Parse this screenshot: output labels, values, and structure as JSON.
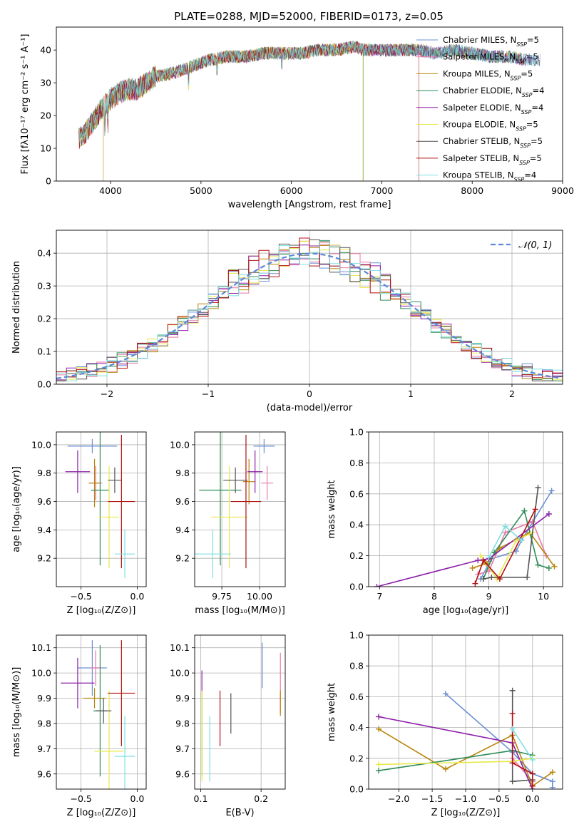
{
  "title": "PLATE=0288, MJD=52000, FIBERID=0173, z=0.05",
  "colors": [
    "#6b8fd6",
    "#e879a8",
    "#b8860b",
    "#2e8b57",
    "#8b1fa8",
    "#e8e84a",
    "#555555",
    "#b01010",
    "#7fdfe0"
  ],
  "chart_data": [
    {
      "id": "spectrum",
      "type": "line",
      "xlabel": "wavelength [Angstrom, rest frame]",
      "ylabel": "Flux [fλ10⁻¹⁷ erg cm⁻² s⁻¹ A⁻¹]",
      "xlim": [
        3400,
        9000
      ],
      "ylim": [
        0,
        47
      ],
      "xticks": [
        "4000",
        "5000",
        "6000",
        "7000",
        "8000",
        "9000"
      ],
      "yticks": [
        "0",
        "10",
        "20",
        "30",
        "40"
      ],
      "legend_position": "upper-right",
      "legend": [
        "Chabrier MILES, N_SSP=5",
        "Salpeter MILES, N_SSP=5",
        "Kroupa MILES, N_SSP=5",
        "Chabrier ELODIE, N_SSP=4",
        "Salpeter ELODIE, N_SSP=4",
        "Kroupa ELODIE, N_SSP=5",
        "Chabrier STELIB, N_SSP=5",
        "Salpeter STELIB, N_SSP=5",
        "Kroupa STELIB, N_SSP=4"
      ],
      "continuum": {
        "x": [
          3650,
          3700,
          3800,
          3900,
          4000,
          4100,
          4200,
          4300,
          4400,
          4500,
          4700,
          4900,
          5100,
          5300,
          5500,
          5700,
          5900,
          6100,
          6300,
          6500,
          6700,
          6800,
          6900,
          7000,
          7200,
          7400,
          7600,
          7800,
          8000,
          8200,
          8400,
          8600,
          8800
        ],
        "y": [
          13,
          14,
          18,
          22,
          25,
          27,
          28,
          28,
          30,
          32,
          33,
          35,
          37,
          38,
          38,
          39,
          39,
          39,
          40,
          40,
          41,
          40,
          40,
          40,
          40,
          40,
          39,
          40,
          39,
          38,
          38,
          37,
          37
        ]
      }
    },
    {
      "id": "residuals",
      "type": "step",
      "xlabel": "(data-model)/error",
      "ylabel": "Normed distribution",
      "xlim": [
        -2.5,
        2.5
      ],
      "ylim": [
        0,
        0.47
      ],
      "xticks": [
        "−2",
        "−1",
        "0",
        "1",
        "2"
      ],
      "yticks": [
        "0.0",
        "0.1",
        "0.2",
        "0.3",
        "0.4"
      ],
      "grid": true,
      "legend_position": "upper-right",
      "legend": [
        "𝒩(0, 1)"
      ],
      "gaussian": {
        "mu": 0,
        "sigma": 1
      }
    },
    {
      "id": "age-vs-Z",
      "type": "errorbar",
      "xlabel": "Z [log₁₀(Z/Z⊙)]",
      "ylabel": "age  [log₁₀(age/yr)]",
      "xlim": [
        -0.72,
        0.08
      ],
      "ylim": [
        9.0,
        10.09
      ],
      "xticks": [
        "−0.5",
        "0.0"
      ],
      "yticks": [
        "9.2",
        "9.4",
        "9.6",
        "9.8",
        "10.0"
      ],
      "grid": true,
      "points": [
        {
          "c": 0,
          "x": -0.4,
          "y": 9.99,
          "xe": 0.22,
          "ye": 0.05
        },
        {
          "c": 1,
          "x": -0.37,
          "y": 9.73,
          "xe": 0.06,
          "ye": 0.12
        },
        {
          "c": 2,
          "x": -0.38,
          "y": 9.73,
          "xe": 0.05,
          "ye": 0.17
        },
        {
          "c": 3,
          "x": -0.33,
          "y": 9.68,
          "xe": 0.08,
          "ye": 0.53
        },
        {
          "c": 4,
          "x": -0.53,
          "y": 9.81,
          "xe": 0.11,
          "ye": 0.15
        },
        {
          "c": 5,
          "x": -0.25,
          "y": 9.49,
          "xe": 0.09,
          "ye": 0.36
        },
        {
          "c": 6,
          "x": -0.2,
          "y": 9.75,
          "xe": 0.06,
          "ye": 0.09
        },
        {
          "c": 7,
          "x": -0.14,
          "y": 9.6,
          "xe": 0.12,
          "ye": 0.47
        },
        {
          "c": 8,
          "x": -0.11,
          "y": 9.23,
          "xe": 0.09,
          "ye": 0.17
        }
      ]
    },
    {
      "id": "age-vs-mass",
      "type": "errorbar",
      "xlabel": "mass [log₁₀(M/M⊙)]",
      "ylabel": "",
      "xlim": [
        9.57,
        10.17
      ],
      "ylim": [
        9.0,
        10.09
      ],
      "xticks": [
        "9.75",
        "10.00"
      ],
      "yticks": [
        "9.2",
        "9.4",
        "9.6",
        "9.8",
        "10.0"
      ],
      "grid": true,
      "points": [
        {
          "c": 0,
          "x": 10.03,
          "y": 9.99,
          "xe": 0.07,
          "ye": 0.05
        },
        {
          "c": 1,
          "x": 10.05,
          "y": 9.73,
          "xe": 0.04,
          "ye": 0.12
        },
        {
          "c": 2,
          "x": 9.93,
          "y": 9.74,
          "xe": 0.04,
          "ye": 0.16
        },
        {
          "c": 3,
          "x": 9.74,
          "y": 9.68,
          "xe": 0.14,
          "ye": 0.53
        },
        {
          "c": 4,
          "x": 9.97,
          "y": 9.81,
          "xe": 0.05,
          "ye": 0.15
        },
        {
          "c": 5,
          "x": 9.8,
          "y": 9.49,
          "xe": 0.12,
          "ye": 0.36
        },
        {
          "c": 6,
          "x": 9.84,
          "y": 9.75,
          "xe": 0.08,
          "ye": 0.09
        },
        {
          "c": 7,
          "x": 9.91,
          "y": 9.6,
          "xe": 0.1,
          "ye": 0.47
        },
        {
          "c": 8,
          "x": 9.69,
          "y": 9.23,
          "xe": 0.12,
          "ye": 0.17
        }
      ]
    },
    {
      "id": "weight-vs-age",
      "type": "line",
      "xlabel": "age  [log₁₀(age/yr)]",
      "ylabel": "mass weight",
      "xlim": [
        6.8,
        10.35
      ],
      "ylim": [
        0,
        1.0
      ],
      "xticks": [
        "7",
        "8",
        "9",
        "10"
      ],
      "yticks": [
        "0.0",
        "0.2",
        "0.4",
        "0.6",
        "0.8",
        "1.0"
      ],
      "grid": true,
      "series": [
        {
          "c": 0,
          "x": [
            8.85,
            9.05,
            9.5,
            9.6,
            10.15
          ],
          "y": [
            0.05,
            0.18,
            0.23,
            0.3,
            0.62
          ]
        },
        {
          "c": 1,
          "x": [
            8.8,
            9.0,
            9.3,
            9.8,
            10.05
          ],
          "y": [
            0.08,
            0.1,
            0.35,
            0.42,
            0.2
          ]
        },
        {
          "c": 2,
          "x": [
            8.7,
            8.95,
            9.2,
            9.75,
            10.2
          ],
          "y": [
            0.12,
            0.15,
            0.25,
            0.35,
            0.13
          ]
        },
        {
          "c": 3,
          "x": [
            8.9,
            9.1,
            9.65,
            9.9,
            10.1
          ],
          "y": [
            0.05,
            0.22,
            0.49,
            0.14,
            0.12
          ]
        },
        {
          "c": 4,
          "x": [
            6.95,
            8.8,
            9.0,
            10.1
          ],
          "y": [
            0.0,
            0.17,
            0.18,
            0.47
          ]
        },
        {
          "c": 5,
          "x": [
            8.85,
            9.15,
            9.5,
            9.8
          ],
          "y": [
            0.2,
            0.05,
            0.3,
            0.35
          ]
        },
        {
          "c": 6,
          "x": [
            8.9,
            9.05,
            9.7,
            9.9
          ],
          "y": [
            0.05,
            0.06,
            0.06,
            0.64
          ]
        },
        {
          "c": 7,
          "x": [
            8.75,
            8.9,
            9.2,
            9.85
          ],
          "y": [
            0.02,
            0.17,
            0.05,
            0.5
          ]
        },
        {
          "c": 8,
          "x": [
            9.0,
            9.3,
            9.6
          ],
          "y": [
            0.19,
            0.39,
            0.3
          ]
        }
      ]
    },
    {
      "id": "mass-vs-Z",
      "type": "errorbar",
      "xlabel": "Z [log₁₀(Z/Z⊙)]",
      "ylabel": "mass [log₁₀(M/M⊙)]",
      "xlim": [
        -0.72,
        0.08
      ],
      "ylim": [
        9.54,
        10.15
      ],
      "xticks": [
        "−0.5",
        "0.0"
      ],
      "yticks": [
        "9.6",
        "9.7",
        "9.8",
        "9.9",
        "10.0",
        "10.1"
      ],
      "grid": true,
      "points": [
        {
          "c": 0,
          "x": -0.4,
          "y": 10.02,
          "xe": 0.13,
          "ye": 0.11
        },
        {
          "c": 1,
          "x": -0.37,
          "y": 10.02,
          "xe": 0.05,
          "ye": 0.07
        },
        {
          "c": 2,
          "x": -0.38,
          "y": 9.9,
          "xe": 0.1,
          "ye": 0.04
        },
        {
          "c": 3,
          "x": -0.33,
          "y": 9.85,
          "xe": 0.06,
          "ye": 0.26
        },
        {
          "c": 4,
          "x": -0.53,
          "y": 9.96,
          "xe": 0.15,
          "ye": 0.1
        },
        {
          "c": 5,
          "x": -0.25,
          "y": 9.69,
          "xe": 0.13,
          "ye": 0.24
        },
        {
          "c": 6,
          "x": -0.3,
          "y": 9.85,
          "xe": 0.07,
          "ye": 0.05
        },
        {
          "c": 7,
          "x": -0.14,
          "y": 9.92,
          "xe": 0.12,
          "ye": 0.21
        },
        {
          "c": 8,
          "x": -0.11,
          "y": 9.67,
          "xe": 0.09,
          "ye": 0.16
        }
      ]
    },
    {
      "id": "mass-vs-EBV",
      "type": "errorbar",
      "xlabel": "E(B-V)",
      "ylabel": "",
      "xlim": [
        0.09,
        0.24
      ],
      "ylim": [
        9.54,
        10.15
      ],
      "xticks": [
        "0.1",
        "0.2"
      ],
      "yticks": [
        "9.6",
        "9.7",
        "9.8",
        "9.9",
        "10.0",
        "10.1"
      ],
      "grid": true,
      "points": [
        {
          "c": 0,
          "x": 0.202,
          "y": 10.03,
          "xe": 0.0,
          "ye": 0.09
        },
        {
          "c": 1,
          "x": 0.232,
          "y": 9.96,
          "xe": 0.0,
          "ye": 0.12
        },
        {
          "c": 2,
          "x": 0.232,
          "y": 9.88,
          "xe": 0.0,
          "ye": 0.05
        },
        {
          "c": 3,
          "x": 0.102,
          "y": 9.75,
          "xe": 0.0,
          "ye": 0.16
        },
        {
          "c": 4,
          "x": 0.102,
          "y": 9.96,
          "xe": 0.0,
          "ye": 0.05
        },
        {
          "c": 5,
          "x": 0.102,
          "y": 9.75,
          "xe": 0.0,
          "ye": 0.18
        },
        {
          "c": 6,
          "x": 0.15,
          "y": 9.84,
          "xe": 0.0,
          "ye": 0.08
        },
        {
          "c": 7,
          "x": 0.132,
          "y": 9.82,
          "xe": 0.0,
          "ye": 0.11
        },
        {
          "c": 8,
          "x": 0.115,
          "y": 9.7,
          "xe": 0.0,
          "ye": 0.13
        }
      ]
    },
    {
      "id": "weight-vs-Z",
      "type": "line",
      "xlabel": "Z [log₁₀(Z/Z⊙)]",
      "ylabel": "mass weight",
      "xlim": [
        -2.45,
        0.45
      ],
      "ylim": [
        0,
        1.0
      ],
      "xticks": [
        "−2.0",
        "−1.5",
        "−1.0",
        "−0.5",
        "0.0"
      ],
      "yticks": [
        "0.0",
        "0.2",
        "0.4",
        "0.6",
        "0.8",
        "1.0"
      ],
      "grid": true,
      "series": [
        {
          "c": 0,
          "x": [
            -1.3,
            -0.3,
            0.0,
            0.3,
            0.3
          ],
          "y": [
            0.62,
            0.24,
            0.1,
            0.05,
            0.01
          ]
        },
        {
          "c": 1,
          "x": [
            -0.3,
            -0.3,
            0.0
          ],
          "y": [
            0.35,
            0.2,
            0.05
          ]
        },
        {
          "c": 2,
          "x": [
            -2.3,
            -1.3,
            -0.3,
            0.0,
            0.3
          ],
          "y": [
            0.39,
            0.13,
            0.35,
            0.02,
            0.11
          ]
        },
        {
          "c": 3,
          "x": [
            -2.3,
            -0.3,
            0.0
          ],
          "y": [
            0.12,
            0.25,
            0.22
          ]
        },
        {
          "c": 4,
          "x": [
            -2.3,
            -0.3,
            0.0
          ],
          "y": [
            0.47,
            0.3,
            0.0
          ]
        },
        {
          "c": 5,
          "x": [
            -2.3,
            -0.3,
            0.0
          ],
          "y": [
            0.16,
            0.18,
            0.2
          ]
        },
        {
          "c": 6,
          "x": [
            -0.3,
            -0.3,
            0.0
          ],
          "y": [
            0.64,
            0.05,
            0.06
          ]
        },
        {
          "c": 7,
          "x": [
            -0.3,
            -0.3,
            0.0,
            0.0
          ],
          "y": [
            0.49,
            0.17,
            0.1,
            0.02
          ]
        },
        {
          "c": 8,
          "x": [
            -0.3,
            0.0
          ],
          "y": [
            0.39,
            0.19
          ]
        }
      ]
    }
  ]
}
